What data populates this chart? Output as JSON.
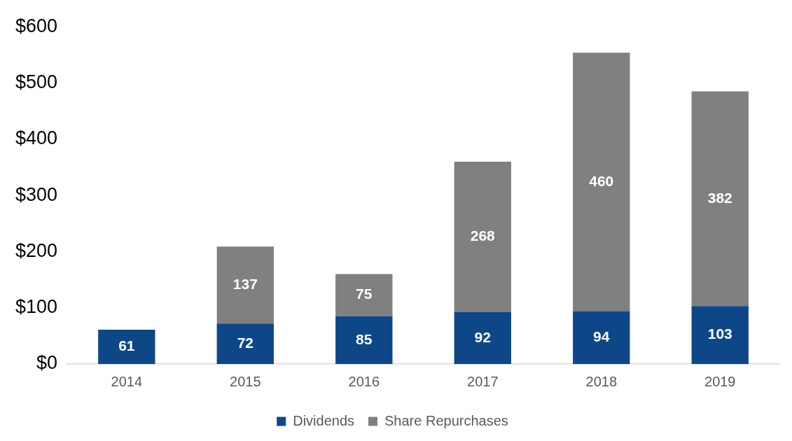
{
  "chart_data": {
    "type": "bar",
    "stacked": true,
    "categories": [
      "2014",
      "2015",
      "2016",
      "2017",
      "2018",
      "2019"
    ],
    "series": [
      {
        "name": "Dividends",
        "color": "#0d4787",
        "values": [
          61,
          72,
          85,
          92,
          94,
          103
        ]
      },
      {
        "name": "Share Repurchases",
        "color": "#808080",
        "values": [
          null,
          137,
          75,
          268,
          460,
          382
        ]
      }
    ],
    "ylim": [
      0,
      600
    ],
    "yticks": [
      {
        "value": 0,
        "label": "$0"
      },
      {
        "value": 100,
        "label": "$100"
      },
      {
        "value": 200,
        "label": "$200"
      },
      {
        "value": 300,
        "label": "$300"
      },
      {
        "value": 400,
        "label": "$400"
      },
      {
        "value": 500,
        "label": "$500"
      },
      {
        "value": 600,
        "label": "$600"
      }
    ],
    "grid": false,
    "legend": "bottom",
    "data_labels": true
  }
}
